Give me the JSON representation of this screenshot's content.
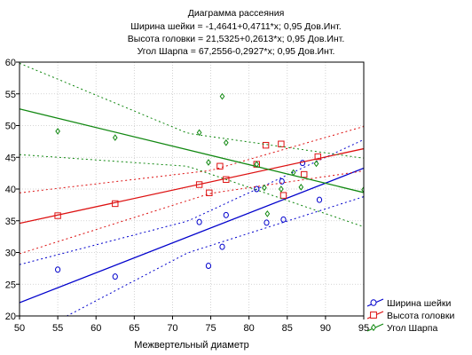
{
  "chart_data": {
    "type": "scatter",
    "title": "Диаграмма рассеяния",
    "subtitle_lines": [
      "Ширина шейки = -1,4641+0,4711*x; 0,95 Дов.Инт.",
      "Высота головки = 21,5325+0,2613*x; 0,95 Дов.Инт.",
      "Угол Шарпа = 67,2556-0,2927*x; 0,95 Дов.Инт."
    ],
    "xlabel": "Межвертельный диаметр",
    "ylabel": "",
    "xlim": [
      50,
      95
    ],
    "ylim": [
      20,
      60
    ],
    "xticks": [
      50,
      55,
      60,
      65,
      70,
      75,
      80,
      85,
      90,
      95
    ],
    "yticks": [
      20,
      25,
      30,
      35,
      40,
      45,
      50,
      55,
      60
    ],
    "grid": true,
    "legend_position": "bottom-right",
    "series": [
      {
        "name": "Ширина шейки",
        "color": "#0000cc",
        "marker": "circle",
        "intercept": -1.4641,
        "slope": 0.4711,
        "ci_offset": [
          [
            50,
            6.0
          ],
          [
            72,
            2.5
          ],
          [
            95,
            4.5
          ]
        ],
        "points": [
          [
            55,
            27.3
          ],
          [
            62.5,
            26.2
          ],
          [
            73.5,
            34.8
          ],
          [
            74.7,
            27.9
          ],
          [
            76.5,
            30.9
          ],
          [
            77,
            35.9
          ],
          [
            81,
            40
          ],
          [
            82.3,
            34.7
          ],
          [
            84.3,
            41.2
          ],
          [
            84.5,
            35.2
          ],
          [
            87,
            44.1
          ],
          [
            89.2,
            38.3
          ]
        ]
      },
      {
        "name": "Высота головки",
        "color": "#dd1111",
        "marker": "square",
        "intercept": 21.5325,
        "slope": 0.2613,
        "ci_offset": [
          [
            50,
            4.8
          ],
          [
            75,
            1.8
          ],
          [
            95,
            3.5
          ]
        ],
        "points": [
          [
            55,
            35.8
          ],
          [
            62.5,
            37.7
          ],
          [
            73.5,
            40.7
          ],
          [
            74.8,
            39.4
          ],
          [
            76.2,
            43.6
          ],
          [
            77,
            41.5
          ],
          [
            81,
            43.9
          ],
          [
            82.2,
            46.9
          ],
          [
            84.2,
            47.1
          ],
          [
            84.5,
            39.0
          ],
          [
            87.2,
            42.3
          ],
          [
            89,
            45.1
          ]
        ]
      },
      {
        "name": "Угол Шарпа",
        "color": "#118811",
        "marker": "diamond",
        "intercept": 67.2556,
        "slope": -0.2927,
        "ci_offset": [
          [
            50,
            7.2
          ],
          [
            72,
            2.6
          ],
          [
            95,
            5.4
          ]
        ],
        "points": [
          [
            55,
            49.1
          ],
          [
            62.5,
            48.1
          ],
          [
            73.5,
            48.9
          ],
          [
            74.7,
            44.2
          ],
          [
            76.5,
            54.6
          ],
          [
            77,
            47.3
          ],
          [
            81,
            43.9
          ],
          [
            82,
            40.2
          ],
          [
            82.4,
            36.1
          ],
          [
            84.2,
            40.0
          ],
          [
            85.8,
            42.6
          ],
          [
            86.8,
            40.3
          ],
          [
            88.8,
            44.0
          ],
          [
            95,
            39.9
          ]
        ]
      }
    ]
  }
}
